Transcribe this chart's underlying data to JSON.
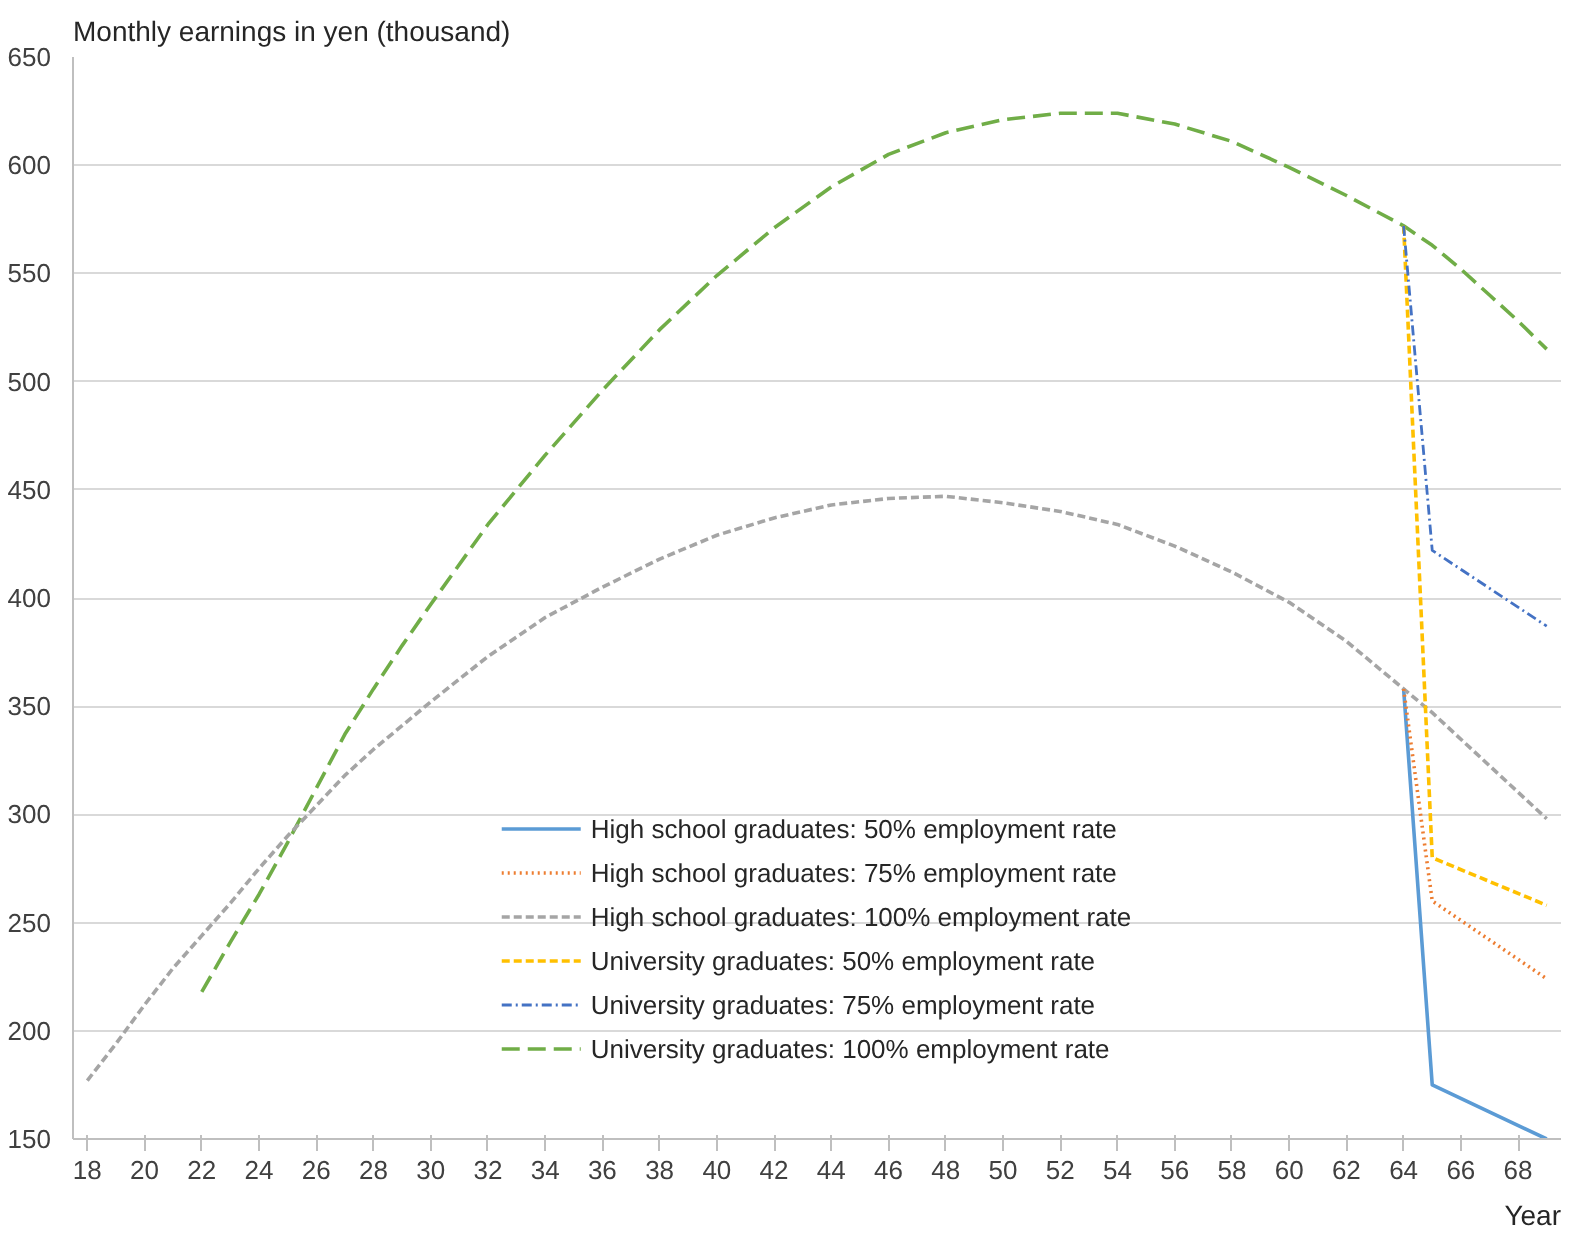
{
  "chart_data": {
    "type": "line",
    "ylabel": "Monthly earnings in yen (thousand)",
    "xlabel": "Year",
    "xlim": [
      17.5,
      69.5
    ],
    "xticks": [
      18,
      20,
      22,
      24,
      26,
      28,
      30,
      32,
      34,
      36,
      38,
      40,
      42,
      44,
      46,
      48,
      50,
      52,
      54,
      56,
      58,
      60,
      62,
      64,
      66,
      68
    ],
    "ylim": [
      150,
      650
    ],
    "yticks": [
      150,
      200,
      250,
      300,
      350,
      400,
      450,
      500,
      550,
      600,
      650
    ],
    "grid": "y",
    "legend": "bottom",
    "marker": "none",
    "series": [
      {
        "name": "High school graduates: 50% employment rate",
        "color": "#5b9bd5",
        "line_style": "solid",
        "x": [
          64,
          65,
          69
        ],
        "values": [
          358,
          175,
          150
        ]
      },
      {
        "name": "High school graduates: 75% employment rate",
        "color": "#ed7d31",
        "line_style": "dotted",
        "x": [
          64,
          65,
          69
        ],
        "values": [
          358,
          260,
          224
        ]
      },
      {
        "name": "High school graduates: 100% employment rate",
        "color": "#a5a5a5",
        "line_style": "dashed",
        "x": [
          18,
          19,
          20,
          21,
          22,
          23,
          24,
          25,
          26,
          27,
          28,
          29,
          30,
          32,
          34,
          36,
          38,
          40,
          42,
          44,
          46,
          48,
          50,
          52,
          54,
          56,
          58,
          60,
          62,
          64,
          65,
          69
        ],
        "values": [
          177,
          194,
          212,
          229,
          244,
          259,
          275,
          290,
          304,
          318,
          330,
          341,
          352,
          373,
          391,
          405,
          418,
          429,
          437,
          443,
          446,
          447,
          444,
          440,
          434,
          424,
          412,
          398,
          380,
          358,
          347,
          298
        ]
      },
      {
        "name": "University graduates: 50% employment rate",
        "color": "#ffc000",
        "line_style": "dashed",
        "x": [
          64,
          65,
          69
        ],
        "values": [
          572,
          280,
          258
        ]
      },
      {
        "name": "University graduates: 75% employment rate",
        "color": "#4472c4",
        "line_style": "dashdot",
        "x": [
          64,
          65,
          69
        ],
        "values": [
          572,
          422,
          387
        ]
      },
      {
        "name": "University graduates: 100% employment rate",
        "color": "#70ad47",
        "line_style": "longdash",
        "x": [
          22,
          23,
          24,
          25,
          26,
          27,
          28,
          29,
          30,
          32,
          34,
          36,
          38,
          40,
          42,
          44,
          46,
          48,
          50,
          52,
          54,
          56,
          58,
          60,
          62,
          64,
          65,
          66,
          67,
          68,
          69
        ],
        "values": [
          218,
          241,
          263,
          287,
          312,
          337,
          358,
          378,
          397,
          434,
          466,
          496,
          524,
          549,
          571,
          590,
          605,
          615,
          621,
          624,
          624,
          619,
          611,
          599,
          586,
          572,
          563,
          552,
          540,
          528,
          515
        ]
      }
    ]
  }
}
